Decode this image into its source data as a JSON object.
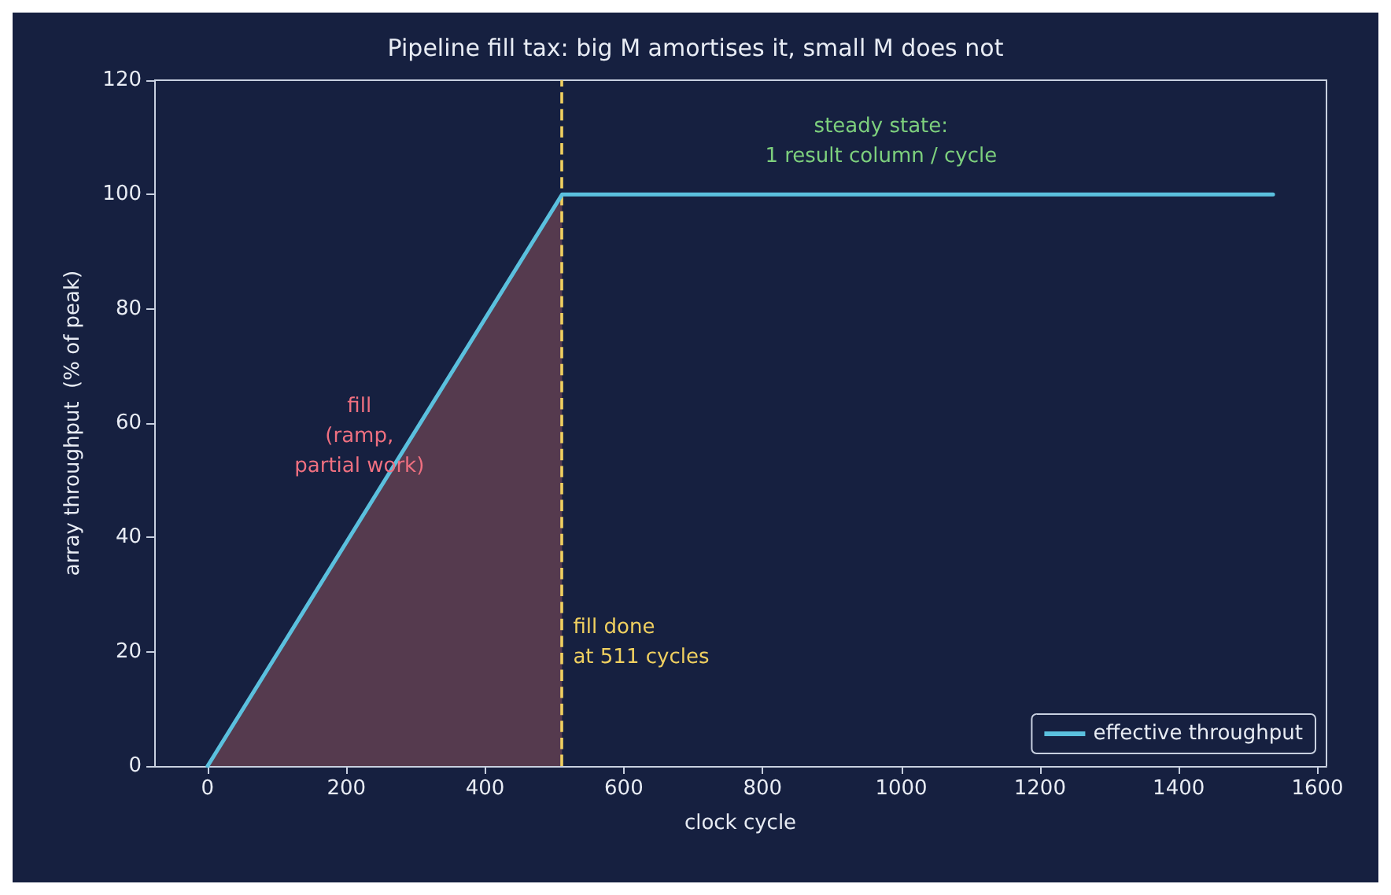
{
  "chart_data": {
    "type": "line",
    "title": "Pipeline fill tax: big M amortises it, small M does not",
    "xlabel": "clock cycle",
    "ylabel": "array throughput  (% of peak)",
    "series": [
      {
        "name": "effective throughput",
        "color": "#5bc0de",
        "x": [
          0,
          511,
          1536
        ],
        "values": [
          0,
          100,
          100
        ]
      },
      {
        "type": "area",
        "color": "#553a4e",
        "x": [
          0,
          511
        ],
        "values": [
          0,
          100
        ]
      }
    ],
    "xlim": [
      -77,
      1613
    ],
    "xticks": [
      0,
      200,
      400,
      600,
      800,
      1000,
      1200,
      1400,
      1600
    ],
    "ylim": [
      0,
      120
    ],
    "yticks": [
      0,
      20,
      40,
      60,
      80,
      100,
      120
    ],
    "ref_lines": [
      {
        "axis": "x",
        "value": 511,
        "label": "fill done\nat 511 cycles",
        "color": "#f0d060",
        "line_style": "dashed"
      }
    ],
    "annotations": [
      "fill\n(ramp,\npartial work)",
      "steady state:\n1 result column / cycle"
    ],
    "legend": "bottom right",
    "grid": false,
    "marker": "none",
    "line_style": "solid"
  }
}
